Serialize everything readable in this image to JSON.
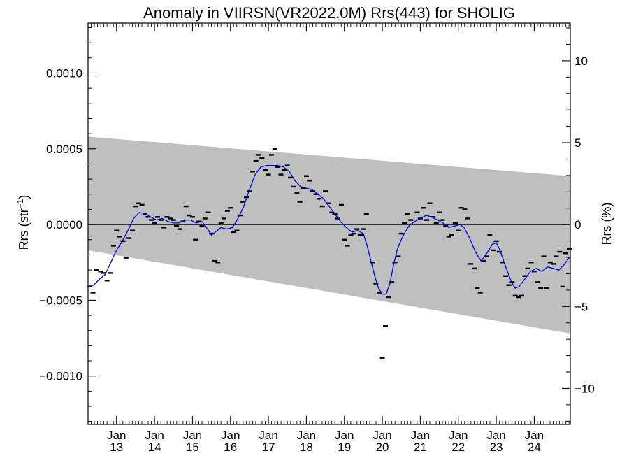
{
  "chart_data": {
    "type": "scatter",
    "title": "Anomaly in VIIRSN(VR2022.0M) Rrs(443) for SHOLIG",
    "ylabel_main": "Rrs (str",
    "ylabel_sup": "−1",
    "ylabel_close": ")",
    "ylabel_right": "Rrs (%)",
    "x_range": [
      2012.25,
      2024.95
    ],
    "ylim": [
      -0.00132,
      0.00133
    ],
    "y2lim": [
      -12.2,
      12.3
    ],
    "grid": false,
    "legend": "none",
    "x_ticks": [
      {
        "x": 2013.0,
        "top": "Jan",
        "bottom": "13"
      },
      {
        "x": 2014.0,
        "top": "Jan",
        "bottom": "14"
      },
      {
        "x": 2015.0,
        "top": "Jan",
        "bottom": "15"
      },
      {
        "x": 2016.0,
        "top": "Jan",
        "bottom": "16"
      },
      {
        "x": 2017.0,
        "top": "Jan",
        "bottom": "17"
      },
      {
        "x": 2018.0,
        "top": "Jan",
        "bottom": "18"
      },
      {
        "x": 2019.0,
        "top": "Jan",
        "bottom": "19"
      },
      {
        "x": 2020.0,
        "top": "Jan",
        "bottom": "20"
      },
      {
        "x": 2021.0,
        "top": "Jan",
        "bottom": "21"
      },
      {
        "x": 2022.0,
        "top": "Jan",
        "bottom": "22"
      },
      {
        "x": 2023.0,
        "top": "Jan",
        "bottom": "23"
      },
      {
        "x": 2024.0,
        "top": "Jan",
        "bottom": "24"
      }
    ],
    "y_ticks": [
      {
        "value": 0.001,
        "label": "0.0010"
      },
      {
        "value": 0.0005,
        "label": "0.0005"
      },
      {
        "value": 0.0,
        "label": "0.0000"
      },
      {
        "value": -0.0005,
        "label": "−0.0005"
      },
      {
        "value": -0.001,
        "label": "−0.0010"
      }
    ],
    "y2_ticks": [
      {
        "value": 10,
        "label": "10"
      },
      {
        "value": 5,
        "label": "5"
      },
      {
        "value": 0,
        "label": "0"
      },
      {
        "value": -5,
        "label": "−5"
      },
      {
        "value": -10,
        "label": "−10"
      }
    ],
    "band": {
      "x": [
        2012.25,
        2024.95
      ],
      "upper": [
        0.00058,
        0.00032
      ],
      "lower": [
        -0.00017,
        -0.00072
      ],
      "color": "#bfbfbf"
    },
    "zero_line": 0,
    "points": [
      [
        2012.3,
        -0.00041
      ],
      [
        2012.38,
        -0.00045
      ],
      [
        2012.47,
        -0.0003
      ],
      [
        2012.58,
        -0.00031
      ],
      [
        2012.66,
        -0.00032
      ],
      [
        2012.75,
        -0.00037
      ],
      [
        2012.83,
        -0.00032
      ],
      [
        2012.92,
        -0.00014
      ],
      [
        2013.0,
        -4e-05
      ],
      [
        2013.08,
        -8e-05
      ],
      [
        2013.17,
        -0.00011
      ],
      [
        2013.25,
        -0.00022
      ],
      [
        2013.33,
        -9e-05
      ],
      [
        2013.42,
        -4e-05
      ],
      [
        2013.5,
        0.00012
      ],
      [
        2013.58,
        0.00014
      ],
      [
        2013.67,
        0.00013
      ],
      [
        2013.75,
        7e-05
      ],
      [
        2013.83,
        5e-05
      ],
      [
        2013.92,
        3e-05
      ],
      [
        2014.0,
        1e-05
      ],
      [
        2014.08,
        5e-05
      ],
      [
        2014.17,
        3e-05
      ],
      [
        2014.25,
        -2e-05
      ],
      [
        2014.33,
        5e-05
      ],
      [
        2014.42,
        4e-05
      ],
      [
        2014.5,
        3e-05
      ],
      [
        2014.58,
        -1e-05
      ],
      [
        2014.67,
        -3e-05
      ],
      [
        2014.75,
        2e-05
      ],
      [
        2014.83,
        0.00012
      ],
      [
        2014.92,
        6e-05
      ],
      [
        2015.0,
        5e-05
      ],
      [
        2015.08,
        -0.0001
      ],
      [
        2015.17,
        2e-05
      ],
      [
        2015.25,
        -1e-05
      ],
      [
        2015.33,
        4e-05
      ],
      [
        2015.42,
        8e-05
      ],
      [
        2015.5,
        -6e-05
      ],
      [
        2015.58,
        -0.00024
      ],
      [
        2015.67,
        -0.00025
      ],
      [
        2015.75,
        1e-05
      ],
      [
        2015.83,
        4e-05
      ],
      [
        2015.92,
        9e-05
      ],
      [
        2016.0,
        0.00011
      ],
      [
        2016.08,
        -5e-05
      ],
      [
        2016.17,
        -4e-05
      ],
      [
        2016.25,
        6e-05
      ],
      [
        2016.33,
        0.00015
      ],
      [
        2016.42,
        0.00018
      ],
      [
        2016.5,
        0.00022
      ],
      [
        2016.58,
        0.00035
      ],
      [
        2016.67,
        0.00042
      ],
      [
        2016.75,
        0.00046
      ],
      [
        2016.83,
        0.00044
      ],
      [
        2016.92,
        0.00036
      ],
      [
        2017.0,
        0.00033
      ],
      [
        2017.08,
        0.00046
      ],
      [
        2017.17,
        0.0005
      ],
      [
        2017.25,
        0.00038
      ],
      [
        2017.33,
        0.00033
      ],
      [
        2017.42,
        0.00036
      ],
      [
        2017.5,
        0.00039
      ],
      [
        2017.58,
        0.00031
      ],
      [
        2017.67,
        0.00025
      ],
      [
        2017.75,
        0.00021
      ],
      [
        2017.83,
        0.00015
      ],
      [
        2017.92,
        0.00024
      ],
      [
        2018.0,
        0.00032
      ],
      [
        2018.08,
        0.00029
      ],
      [
        2018.17,
        0.00022
      ],
      [
        2018.25,
        0.0002
      ],
      [
        2018.33,
        0.00017
      ],
      [
        2018.42,
        0.00012
      ],
      [
        2018.5,
        0.00022
      ],
      [
        2018.58,
        0.00014
      ],
      [
        2018.67,
        8e-05
      ],
      [
        2018.75,
        7e-05
      ],
      [
        2018.83,
        4e-05
      ],
      [
        2018.92,
        0.00013
      ],
      [
        2019.0,
        -0.0001
      ],
      [
        2019.08,
        -0.00014
      ],
      [
        2019.17,
        -7e-05
      ],
      [
        2019.25,
        -6e-05
      ],
      [
        2019.33,
        -3e-05
      ],
      [
        2019.42,
        -7e-05
      ],
      [
        2019.5,
        -3e-05
      ],
      [
        2019.58,
        7e-05
      ],
      [
        2019.75,
        -0.00025
      ],
      [
        2019.83,
        -0.00039
      ],
      [
        2019.92,
        -0.00045
      ],
      [
        2020.0,
        -0.00088
      ],
      [
        2020.08,
        -0.00067
      ],
      [
        2020.17,
        -0.00048
      ],
      [
        2020.25,
        -0.00038
      ],
      [
        2020.33,
        -0.00025
      ],
      [
        2020.42,
        -0.00021
      ],
      [
        2020.5,
        -6e-05
      ],
      [
        2020.58,
        1e-05
      ],
      [
        2020.67,
        7e-05
      ],
      [
        2020.75,
        3e-05
      ],
      [
        2020.92,
        8e-05
      ],
      [
        2021.0,
        4e-05
      ],
      [
        2021.08,
        0.00011
      ],
      [
        2021.17,
        3e-05
      ],
      [
        2021.25,
        0.00014
      ],
      [
        2021.33,
        5e-05
      ],
      [
        2021.42,
        1e-05
      ],
      [
        2021.5,
        8e-05
      ],
      [
        2021.58,
        3e-05
      ],
      [
        2021.67,
        -1e-05
      ],
      [
        2021.75,
        -8e-05
      ],
      [
        2021.83,
        -7e-05
      ],
      [
        2021.92,
        1e-05
      ],
      [
        2022.0,
        -4e-05
      ],
      [
        2022.08,
        0.00011
      ],
      [
        2022.17,
        0.0001
      ],
      [
        2022.25,
        4e-05
      ],
      [
        2022.33,
        -0.00026
      ],
      [
        2022.42,
        -0.00029
      ],
      [
        2022.5,
        -0.00042
      ],
      [
        2022.58,
        -0.00045
      ],
      [
        2022.67,
        -0.00024
      ],
      [
        2022.75,
        -0.00021
      ],
      [
        2022.83,
        -7e-05
      ],
      [
        2022.92,
        -0.00017
      ],
      [
        2023.0,
        -0.00011
      ],
      [
        2023.08,
        -0.00018
      ],
      [
        2023.17,
        -0.00025
      ],
      [
        2023.25,
        -0.00034
      ],
      [
        2023.33,
        -0.0004
      ],
      [
        2023.42,
        -0.00038
      ],
      [
        2023.5,
        -0.00047
      ],
      [
        2023.58,
        -0.00048
      ],
      [
        2023.67,
        -0.00047
      ],
      [
        2023.75,
        -0.00034
      ],
      [
        2023.83,
        -0.00029
      ],
      [
        2023.92,
        -0.00025
      ],
      [
        2024.0,
        -0.00031
      ],
      [
        2024.08,
        -0.00038
      ],
      [
        2024.17,
        -0.00042
      ],
      [
        2024.25,
        -0.00021
      ],
      [
        2024.33,
        -0.00042
      ],
      [
        2024.42,
        -0.00025
      ],
      [
        2024.5,
        -0.00026
      ],
      [
        2024.58,
        -0.00021
      ],
      [
        2024.67,
        -0.00018
      ],
      [
        2024.75,
        -0.00041
      ],
      [
        2024.83,
        -0.00019
      ],
      [
        2024.92,
        -0.00016
      ]
    ],
    "smooth_line": {
      "color": "#0000dd",
      "points": [
        [
          2012.25,
          -0.00041
        ],
        [
          2012.4,
          -0.0004
        ],
        [
          2012.55,
          -0.00036
        ],
        [
          2012.7,
          -0.00033
        ],
        [
          2012.85,
          -0.00025
        ],
        [
          2013.0,
          -0.00017
        ],
        [
          2013.15,
          -0.00011
        ],
        [
          2013.3,
          -4e-05
        ],
        [
          2013.45,
          4e-05
        ],
        [
          2013.6,
          8e-05
        ],
        [
          2013.75,
          7e-05
        ],
        [
          2013.9,
          5e-05
        ],
        [
          2014.05,
          3e-05
        ],
        [
          2014.2,
          4e-05
        ],
        [
          2014.35,
          2e-05
        ],
        [
          2014.5,
          1e-05
        ],
        [
          2014.65,
          1e-05
        ],
        [
          2014.8,
          3e-05
        ],
        [
          2014.95,
          3e-05
        ],
        [
          2015.1,
          1e-05
        ],
        [
          2015.25,
          2e-05
        ],
        [
          2015.4,
          -3e-05
        ],
        [
          2015.5,
          -7e-05
        ],
        [
          2015.6,
          -5e-05
        ],
        [
          2015.75,
          -2e-05
        ],
        [
          2015.9,
          -3e-05
        ],
        [
          2016.05,
          -2e-05
        ],
        [
          2016.2,
          4e-05
        ],
        [
          2016.35,
          0.00012
        ],
        [
          2016.5,
          0.00023
        ],
        [
          2016.65,
          0.00033
        ],
        [
          2016.8,
          0.00038
        ],
        [
          2016.95,
          0.00039
        ],
        [
          2017.1,
          0.00039
        ],
        [
          2017.25,
          0.00039
        ],
        [
          2017.4,
          0.00038
        ],
        [
          2017.55,
          0.00035
        ],
        [
          2017.7,
          0.00029
        ],
        [
          2017.85,
          0.00025
        ],
        [
          2018.0,
          0.00024
        ],
        [
          2018.15,
          0.00023
        ],
        [
          2018.3,
          0.0002
        ],
        [
          2018.45,
          0.00017
        ],
        [
          2018.6,
          0.00012
        ],
        [
          2018.75,
          7e-05
        ],
        [
          2018.9,
          2e-05
        ],
        [
          2019.05,
          -2e-05
        ],
        [
          2019.2,
          -5e-05
        ],
        [
          2019.35,
          -4e-05
        ],
        [
          2019.5,
          -6e-05
        ],
        [
          2019.6,
          -0.00014
        ],
        [
          2019.7,
          -0.00024
        ],
        [
          2019.8,
          -0.00034
        ],
        [
          2019.9,
          -0.00042
        ],
        [
          2020.0,
          -0.00046
        ],
        [
          2020.1,
          -0.00046
        ],
        [
          2020.2,
          -0.00039
        ],
        [
          2020.3,
          -0.00026
        ],
        [
          2020.4,
          -0.00016
        ],
        [
          2020.5,
          -0.0001
        ],
        [
          2020.6,
          -5e-05
        ],
        [
          2020.7,
          -1e-05
        ],
        [
          2020.85,
          2e-05
        ],
        [
          2021.0,
          4e-05
        ],
        [
          2021.15,
          6e-05
        ],
        [
          2021.3,
          5e-05
        ],
        [
          2021.45,
          3e-05
        ],
        [
          2021.6,
          1e-05
        ],
        [
          2021.75,
          -2e-05
        ],
        [
          2021.9,
          -1e-05
        ],
        [
          2022.05,
          0.0
        ],
        [
          2022.15,
          -2e-05
        ],
        [
          2022.3,
          -9e-05
        ],
        [
          2022.45,
          -0.00018
        ],
        [
          2022.6,
          -0.00024
        ],
        [
          2022.75,
          -0.00019
        ],
        [
          2022.9,
          -0.00013
        ],
        [
          2023.0,
          -0.00012
        ],
        [
          2023.1,
          -0.00017
        ],
        [
          2023.25,
          -0.00028
        ],
        [
          2023.4,
          -0.00038
        ],
        [
          2023.5,
          -0.00042
        ],
        [
          2023.6,
          -0.00041
        ],
        [
          2023.75,
          -0.00036
        ],
        [
          2023.9,
          -0.00031
        ],
        [
          2024.05,
          -0.00029
        ],
        [
          2024.2,
          -0.00031
        ],
        [
          2024.35,
          -0.00028
        ],
        [
          2024.5,
          -0.00029
        ],
        [
          2024.65,
          -0.0003
        ],
        [
          2024.8,
          -0.00026
        ],
        [
          2024.95,
          -0.00021
        ]
      ]
    }
  }
}
